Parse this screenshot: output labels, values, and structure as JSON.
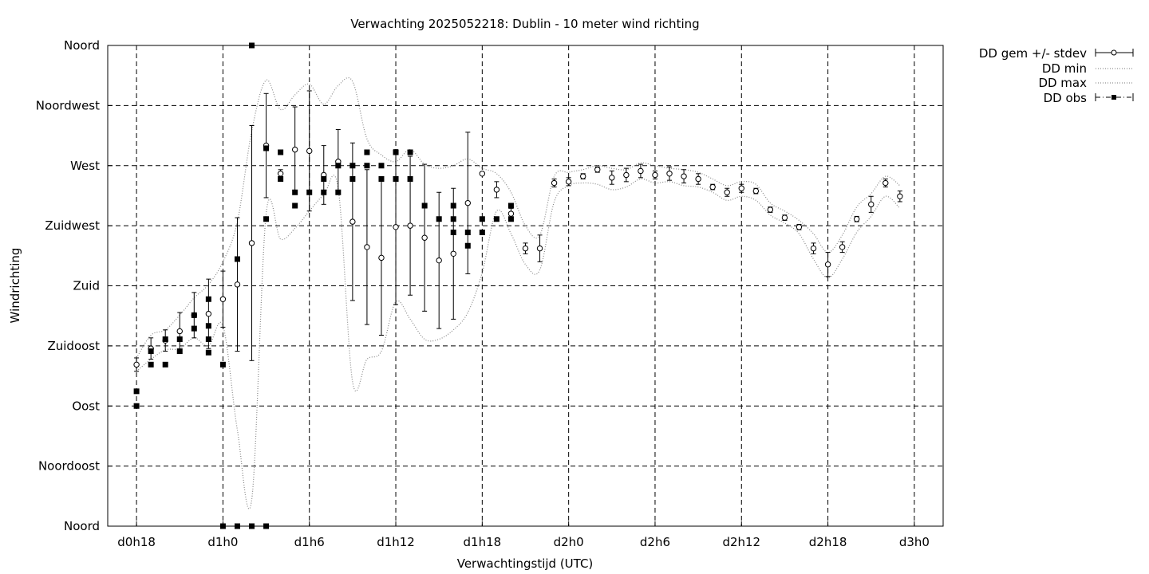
{
  "chart_data": {
    "type": "line",
    "title": "Verwachting 2025052218: Dublin - 10 meter wind richting",
    "xlabel": "Verwachtingstijd (UTC)",
    "ylabel": "Windrichting",
    "x_unit": "hours since d0h0",
    "xlim": [
      16,
      74
    ],
    "ylim": [
      0,
      360
    ],
    "grid": true,
    "legend_position": "top-right outside",
    "x_ticks": [
      {
        "value": 18,
        "label": "d0h18"
      },
      {
        "value": 24,
        "label": "d1h0"
      },
      {
        "value": 30,
        "label": "d1h6"
      },
      {
        "value": 36,
        "label": "d1h12"
      },
      {
        "value": 42,
        "label": "d1h18"
      },
      {
        "value": 48,
        "label": "d2h0"
      },
      {
        "value": 54,
        "label": "d2h6"
      },
      {
        "value": 60,
        "label": "d2h12"
      },
      {
        "value": 66,
        "label": "d2h18"
      },
      {
        "value": 72,
        "label": "d3h0"
      }
    ],
    "y_ticks": [
      {
        "value": 0,
        "label": "Noord"
      },
      {
        "value": 45,
        "label": "Noordoost"
      },
      {
        "value": 90,
        "label": "Oost"
      },
      {
        "value": 135,
        "label": "Zuidoost"
      },
      {
        "value": 180,
        "label": "Zuid"
      },
      {
        "value": 225,
        "label": "Zuidwest"
      },
      {
        "value": 270,
        "label": "West"
      },
      {
        "value": 315,
        "label": "Noordwest"
      },
      {
        "value": 360,
        "label": "Noord"
      }
    ],
    "legend": [
      "DD gem +/- stdev",
      "DD min",
      "DD max",
      "DD obs"
    ],
    "series": [
      {
        "name": "DD gem +/- stdev",
        "style": "errorbars",
        "points": [
          [
            18,
            121,
            5
          ],
          [
            19,
            133,
            8
          ],
          [
            20,
            139,
            8
          ],
          [
            21,
            146,
            14
          ],
          [
            22,
            158,
            17
          ],
          [
            23,
            159,
            26
          ],
          [
            24,
            170,
            21
          ],
          [
            25,
            181,
            50
          ],
          [
            26,
            212,
            88
          ],
          [
            27,
            285,
            39
          ],
          [
            28,
            264,
            3
          ],
          [
            29,
            282,
            32
          ],
          [
            30,
            281,
            45
          ],
          [
            31,
            263,
            22
          ],
          [
            32,
            273,
            24
          ],
          [
            33,
            228,
            59
          ],
          [
            34,
            209,
            58
          ],
          [
            35,
            201,
            58
          ],
          [
            36,
            224,
            58
          ],
          [
            37,
            225,
            52
          ],
          [
            38,
            216,
            55
          ],
          [
            39,
            199,
            51
          ],
          [
            40,
            204,
            49
          ],
          [
            41,
            242,
            53
          ],
          [
            42,
            264,
            1
          ],
          [
            43,
            252,
            6
          ],
          [
            44,
            234,
            4
          ],
          [
            45,
            208,
            4
          ],
          [
            46,
            208,
            10
          ],
          [
            47,
            257,
            3
          ],
          [
            48,
            258,
            3
          ],
          [
            49,
            262,
            2
          ],
          [
            50,
            267,
            2
          ],
          [
            51,
            261,
            5
          ],
          [
            52,
            263,
            5
          ],
          [
            53,
            266,
            5
          ],
          [
            54,
            263,
            3
          ],
          [
            55,
            264,
            5
          ],
          [
            56,
            262,
            5
          ],
          [
            57,
            260,
            4
          ],
          [
            58,
            254,
            2
          ],
          [
            59,
            250,
            3
          ],
          [
            60,
            253,
            3
          ],
          [
            61,
            251,
            2
          ],
          [
            62,
            237,
            2
          ],
          [
            63,
            231,
            2
          ],
          [
            64,
            224,
            2
          ],
          [
            65,
            208,
            4
          ],
          [
            66,
            196,
            9
          ],
          [
            67,
            209,
            4
          ],
          [
            68,
            230,
            2
          ],
          [
            69,
            241,
            6
          ],
          [
            70,
            257,
            3
          ],
          [
            71,
            247,
            4
          ]
        ]
      },
      {
        "name": "DD min",
        "style": "dotted",
        "points": [
          [
            18,
            116
          ],
          [
            19,
            125
          ],
          [
            20,
            132
          ],
          [
            21,
            133
          ],
          [
            22,
            141
          ],
          [
            23,
            135
          ],
          [
            24,
            150
          ],
          [
            25,
            72
          ],
          [
            26,
            20
          ],
          [
            27,
            234
          ],
          [
            28,
            215
          ],
          [
            29,
            223
          ],
          [
            30,
            236
          ],
          [
            31,
            248
          ],
          [
            32,
            253
          ],
          [
            33,
            108
          ],
          [
            34,
            125
          ],
          [
            35,
            131
          ],
          [
            36,
            168
          ],
          [
            37,
            155
          ],
          [
            38,
            140
          ],
          [
            39,
            140
          ],
          [
            40,
            147
          ],
          [
            41,
            160
          ],
          [
            42,
            190
          ],
          [
            43,
            236
          ],
          [
            44,
            219
          ],
          [
            45,
            196
          ],
          [
            46,
            192
          ],
          [
            47,
            243
          ],
          [
            48,
            255
          ],
          [
            49,
            257
          ],
          [
            50,
            256
          ],
          [
            51,
            252
          ],
          [
            52,
            254
          ],
          [
            53,
            260
          ],
          [
            54,
            257
          ],
          [
            55,
            258
          ],
          [
            56,
            255
          ],
          [
            57,
            254
          ],
          [
            58,
            250
          ],
          [
            59,
            244
          ],
          [
            60,
            247
          ],
          [
            61,
            244
          ],
          [
            62,
            233
          ],
          [
            63,
            227
          ],
          [
            64,
            219
          ],
          [
            65,
            200
          ],
          [
            66,
            186
          ],
          [
            67,
            200
          ],
          [
            68,
            220
          ],
          [
            69,
            232
          ],
          [
            70,
            247
          ],
          [
            71,
            238
          ]
        ]
      },
      {
        "name": "DD max",
        "style": "dotted",
        "points": [
          [
            18,
            126
          ],
          [
            19,
            143
          ],
          [
            20,
            147
          ],
          [
            21,
            158
          ],
          [
            22,
            171
          ],
          [
            23,
            181
          ],
          [
            24,
            198
          ],
          [
            25,
            228
          ],
          [
            26,
            296
          ],
          [
            27,
            334
          ],
          [
            28,
            312
          ],
          [
            29,
            323
          ],
          [
            30,
            331
          ],
          [
            31,
            316
          ],
          [
            32,
            330
          ],
          [
            33,
            333
          ],
          [
            34,
            290
          ],
          [
            35,
            278
          ],
          [
            36,
            273
          ],
          [
            37,
            282
          ],
          [
            38,
            271
          ],
          [
            39,
            268
          ],
          [
            40,
            270
          ],
          [
            41,
            275
          ],
          [
            42,
            268
          ],
          [
            43,
            264
          ],
          [
            44,
            250
          ],
          [
            45,
            225
          ],
          [
            46,
            218
          ],
          [
            47,
            262
          ],
          [
            48,
            265
          ],
          [
            49,
            267
          ],
          [
            50,
            270
          ],
          [
            51,
            268
          ],
          [
            52,
            267
          ],
          [
            53,
            272
          ],
          [
            54,
            270
          ],
          [
            55,
            268
          ],
          [
            56,
            267
          ],
          [
            57,
            265
          ],
          [
            58,
            260
          ],
          [
            59,
            255
          ],
          [
            60,
            258
          ],
          [
            61,
            256
          ],
          [
            62,
            242
          ],
          [
            63,
            236
          ],
          [
            64,
            229
          ],
          [
            65,
            219
          ],
          [
            66,
            205
          ],
          [
            67,
            218
          ],
          [
            68,
            239
          ],
          [
            69,
            249
          ],
          [
            70,
            262
          ],
          [
            71,
            255
          ]
        ]
      },
      {
        "name": "DD obs",
        "style": "points",
        "points": [
          [
            18,
            90
          ],
          [
            18,
            101
          ],
          [
            19,
            121
          ],
          [
            19,
            131
          ],
          [
            20,
            121
          ],
          [
            20,
            140
          ],
          [
            21,
            131
          ],
          [
            21,
            140
          ],
          [
            22,
            148
          ],
          [
            22,
            158
          ],
          [
            23,
            130
          ],
          [
            23,
            140
          ],
          [
            23,
            150
          ],
          [
            23,
            170
          ],
          [
            24,
            121
          ],
          [
            24,
            0
          ],
          [
            25,
            200
          ],
          [
            25,
            0
          ],
          [
            26,
            360
          ],
          [
            26,
            0
          ],
          [
            27,
            230
          ],
          [
            27,
            0
          ],
          [
            27,
            283
          ],
          [
            28,
            260
          ],
          [
            28,
            280
          ],
          [
            29,
            240
          ],
          [
            29,
            250
          ],
          [
            30,
            250
          ],
          [
            31,
            250
          ],
          [
            31,
            260
          ],
          [
            32,
            250
          ],
          [
            32,
            270
          ],
          [
            33,
            260
          ],
          [
            33,
            270
          ],
          [
            34,
            270
          ],
          [
            34,
            280
          ],
          [
            35,
            260
          ],
          [
            35,
            270
          ],
          [
            36,
            260
          ],
          [
            36,
            280
          ],
          [
            37,
            260
          ],
          [
            37,
            280
          ],
          [
            38,
            240
          ],
          [
            39,
            230
          ],
          [
            40,
            220
          ],
          [
            40,
            230
          ],
          [
            40,
            240
          ],
          [
            41,
            210
          ],
          [
            41,
            220
          ],
          [
            42,
            220
          ],
          [
            42,
            230
          ],
          [
            43,
            230
          ],
          [
            44,
            230
          ],
          [
            44,
            240
          ]
        ]
      }
    ]
  }
}
